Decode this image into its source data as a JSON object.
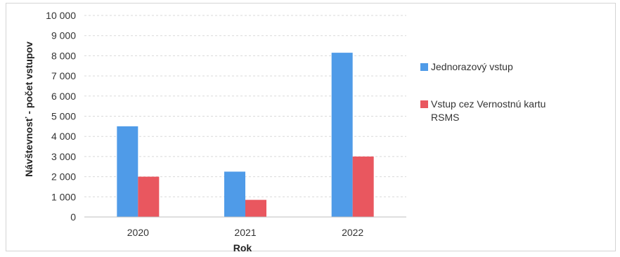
{
  "chart_data": {
    "type": "bar",
    "title": "",
    "xlabel": "Rok",
    "ylabel": "Návštevnosť - počet vstupov",
    "categories": [
      "2020",
      "2021",
      "2022"
    ],
    "ylim": [
      0,
      10000
    ],
    "yticks": [
      "0",
      "1 000",
      "2 000",
      "3 000",
      "4 000",
      "5 000",
      "6 000",
      "7 000",
      "8 000",
      "9 000",
      "10 000"
    ],
    "grid": true,
    "legend_position": "right",
    "series": [
      {
        "name": "Jednorazový vstup",
        "color": "#4f9be8",
        "values": [
          4500,
          2250,
          8150
        ]
      },
      {
        "name": "Vstup cez Vernostnú kartu RSMS",
        "color": "#e9575f",
        "values": [
          2000,
          850,
          3000
        ]
      }
    ]
  }
}
